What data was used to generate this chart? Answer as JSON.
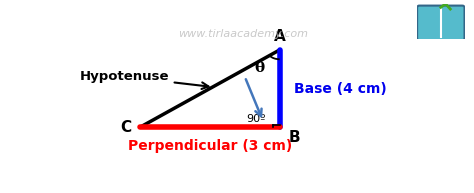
{
  "bg_color": "#ffffff",
  "triangle": {
    "C": [
      0.22,
      0.3
    ],
    "B": [
      0.6,
      0.3
    ],
    "A": [
      0.6,
      0.82
    ]
  },
  "hypotenuse_color": "#000000",
  "base_color": "#0000ff",
  "perpendicular_color": "#ff0000",
  "watermark": "www.tirlaacademy.com",
  "watermark_color": "#c0c0c0",
  "label_A": "A",
  "label_B": "B",
  "label_C": "C",
  "label_theta": "θ",
  "label_90": "90º",
  "label_hypotenuse": "Hypotenuse",
  "label_base": "Base (4 cm)",
  "label_perpendicular": "Perpendicular (3 cm)",
  "base_text_color": "#0000ee",
  "perp_text_color": "#ff0000",
  "hyp_text_color": "#000000",
  "arrow_color": "#4477bb",
  "icon_color": "#44aa44"
}
